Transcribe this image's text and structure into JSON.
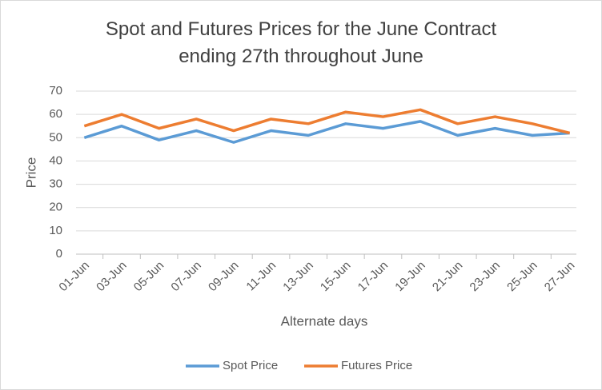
{
  "chart_data": {
    "type": "line",
    "title": "Spot and Futures Prices for the June Contract ending 27th throughout June",
    "x_label": "Alternate days",
    "y_label": "Price",
    "categories": [
      "01-Jun",
      "03-Jun",
      "05-Jun",
      "07-Jun",
      "09-Jun",
      "11-Jun",
      "13-Jun",
      "15-Jun",
      "17-Jun",
      "19-Jun",
      "21-Jun",
      "23-Jun",
      "25-Jun",
      "27-Jun"
    ],
    "series": [
      {
        "name": "Spot Price",
        "color": "#5b9bd5",
        "values": [
          50,
          55,
          49,
          53,
          48,
          53,
          51,
          56,
          54,
          57,
          51,
          54,
          51,
          52
        ]
      },
      {
        "name": "Futures Price",
        "color": "#ed7d31",
        "values": [
          55,
          60,
          54,
          58,
          53,
          58,
          56,
          61,
          59,
          62,
          56,
          59,
          56,
          52
        ]
      }
    ],
    "ylim": [
      0,
      70
    ],
    "yticks": [
      0,
      10,
      20,
      30,
      40,
      50,
      60,
      70
    ],
    "grid": true,
    "legend": "bottom"
  }
}
